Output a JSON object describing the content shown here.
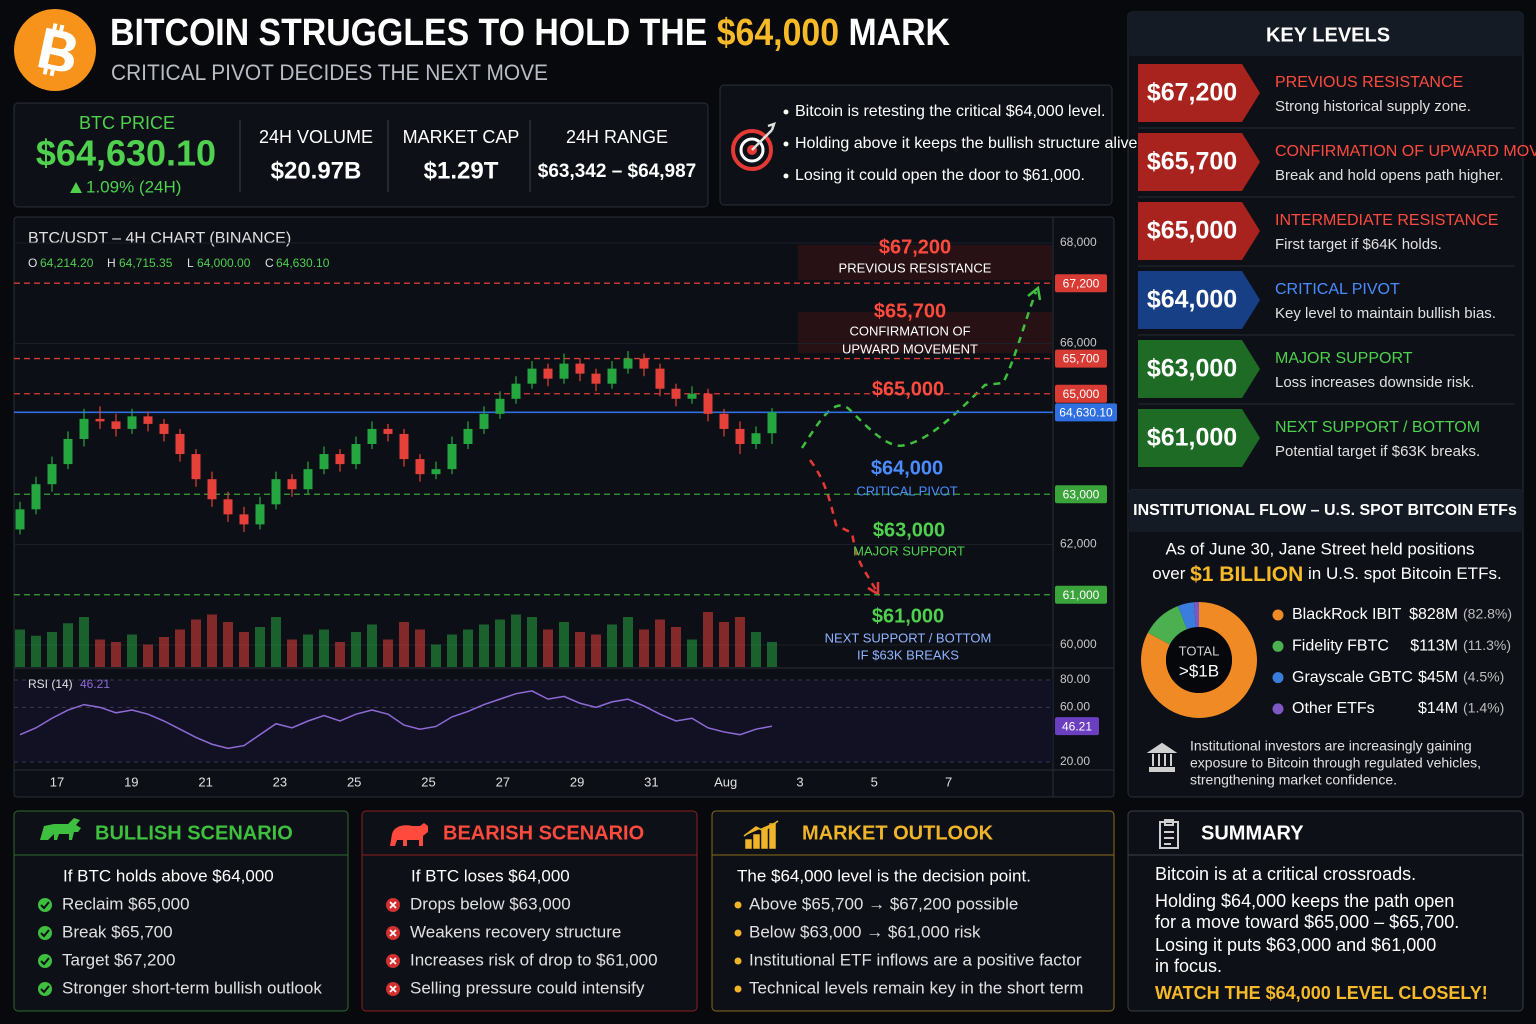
{
  "header": {
    "title_parts": [
      "BITCOIN STRUGGLES TO HOLD THE ",
      "$64,000",
      " MARK"
    ],
    "subtitle": "CRITICAL PIVOT DECIDES THE NEXT MOVE"
  },
  "price_box": {
    "label": "BTC PRICE",
    "price": "$64,630.10",
    "change": "1.09% (24H)"
  },
  "stats": [
    {
      "label": "24H VOLUME",
      "value": "$20.97B"
    },
    {
      "label": "MARKET CAP",
      "value": "$1.29T"
    },
    {
      "label": "24H RANGE",
      "value": "$63,342 – $64,987"
    }
  ],
  "notes": [
    "Bitcoin is retesting the critical $64,000 level.",
    "Holding above it keeps the bullish structure alive.",
    "Losing it could open the door to $61,000."
  ],
  "chart_data": {
    "type": "candlestick",
    "title": "BTC/USDT – 4H CHART (BINANCE)",
    "ohlc_labels": [
      {
        "key": "O",
        "value": "64,214.20"
      },
      {
        "key": "H",
        "value": "64,715.35"
      },
      {
        "key": "L",
        "value": "64,000.00"
      },
      {
        "key": "C",
        "value": "64,630.10"
      }
    ],
    "candles": [
      [
        62300,
        62850,
        62200,
        62700
      ],
      [
        62700,
        63350,
        62600,
        63200
      ],
      [
        63200,
        63750,
        63050,
        63600
      ],
      [
        63600,
        64250,
        63500,
        64100
      ],
      [
        64100,
        64700,
        63950,
        64500
      ],
      [
        64500,
        64750,
        64300,
        64450
      ],
      [
        64450,
        64600,
        64150,
        64300
      ],
      [
        64300,
        64700,
        64200,
        64550
      ],
      [
        64550,
        64650,
        64250,
        64400
      ],
      [
        64400,
        64500,
        64050,
        64200
      ],
      [
        64200,
        64300,
        63650,
        63800
      ],
      [
        63800,
        63900,
        63150,
        63300
      ],
      [
        63300,
        63450,
        62750,
        62900
      ],
      [
        62900,
        63050,
        62450,
        62600
      ],
      [
        62600,
        62750,
        62250,
        62400
      ],
      [
        62400,
        62950,
        62300,
        62800
      ],
      [
        62800,
        63450,
        62700,
        63300
      ],
      [
        63300,
        63400,
        62950,
        63100
      ],
      [
        63100,
        63650,
        63000,
        63500
      ],
      [
        63500,
        63950,
        63400,
        63800
      ],
      [
        63800,
        63900,
        63450,
        63600
      ],
      [
        63600,
        64150,
        63500,
        64000
      ],
      [
        64000,
        64450,
        63900,
        64300
      ],
      [
        64300,
        64400,
        64050,
        64200
      ],
      [
        64200,
        64300,
        63550,
        63700
      ],
      [
        63700,
        63800,
        63250,
        63400
      ],
      [
        63400,
        63650,
        63300,
        63500
      ],
      [
        63500,
        64150,
        63400,
        64000
      ],
      [
        64000,
        64450,
        63900,
        64300
      ],
      [
        64300,
        64750,
        64200,
        64600
      ],
      [
        64600,
        65050,
        64500,
        64900
      ],
      [
        64900,
        65350,
        64800,
        65200
      ],
      [
        65200,
        65650,
        65100,
        65500
      ],
      [
        65500,
        65600,
        65150,
        65300
      ],
      [
        65300,
        65800,
        65200,
        65600
      ],
      [
        65600,
        65700,
        65250,
        65400
      ],
      [
        65400,
        65500,
        65050,
        65200
      ],
      [
        65200,
        65650,
        65100,
        65500
      ],
      [
        65500,
        65850,
        65400,
        65700
      ],
      [
        65700,
        65800,
        65350,
        65500
      ],
      [
        65500,
        65600,
        64950,
        65100
      ],
      [
        65100,
        65200,
        64750,
        64900
      ],
      [
        64900,
        65150,
        64800,
        65000
      ],
      [
        65000,
        65100,
        64450,
        64600
      ],
      [
        64600,
        64700,
        64150,
        64300
      ],
      [
        64300,
        64450,
        63800,
        64000
      ],
      [
        64000,
        64350,
        63900,
        64214.2
      ],
      [
        64214.2,
        64715.35,
        64000,
        64630.1
      ]
    ],
    "volume": [
      30,
      25,
      28,
      35,
      40,
      22,
      20,
      26,
      18,
      24,
      30,
      38,
      42,
      36,
      28,
      32,
      40,
      22,
      26,
      30,
      20,
      28,
      34,
      22,
      36,
      30,
      18,
      26,
      30,
      34,
      38,
      42,
      40,
      30,
      36,
      28,
      26,
      34,
      40,
      30,
      38,
      32,
      22,
      44,
      36,
      40,
      28,
      20
    ],
    "up_color": "#26a641",
    "down_color": "#e5403a",
    "ylim": [
      60000,
      68000
    ],
    "yticks": [
      {
        "value": 68000,
        "label": "68,000"
      },
      {
        "value": 66000,
        "label": "66,000"
      },
      {
        "value": 62000,
        "label": "62,000"
      },
      {
        "value": 60000,
        "label": "60,000"
      }
    ],
    "grid": true,
    "x_tick_labels": [
      "17",
      "19",
      "21",
      "23",
      "25",
      "25",
      "27",
      "29",
      "31",
      "Aug",
      "3",
      "5",
      "7"
    ],
    "levels": [
      {
        "value": 67200,
        "label": "67,200",
        "color": "#d83a34",
        "style": "dashed"
      },
      {
        "value": 65700,
        "label": "65,700",
        "color": "#d83a34",
        "style": "dashed"
      },
      {
        "value": 65000,
        "label": "65,000",
        "color": "#d83a34",
        "style": "dashed"
      },
      {
        "value": 64630.1,
        "label": "64,630.10",
        "color": "#2f6fe0",
        "style": "solid"
      },
      {
        "value": 63000,
        "label": "63,000",
        "color": "#3aa33a",
        "style": "dashed"
      },
      {
        "value": 61000,
        "label": "61,000",
        "color": "#3aa33a",
        "style": "dashed"
      }
    ],
    "annotations": [
      {
        "title": "$67,200",
        "lines": [
          "PREVIOUS RESISTANCE"
        ],
        "color": "#ff4a3d",
        "sub_color": "#ffffff"
      },
      {
        "title": "$65,700",
        "lines": [
          "CONFIRMATION OF",
          "UPWARD MOVEMENT"
        ],
        "color": "#ff4a3d",
        "sub_color": "#ffffff"
      },
      {
        "title": "$65,000",
        "lines": [],
        "color": "#ff4a3d",
        "sub_color": "#ffffff"
      },
      {
        "title": "$64,000",
        "lines": [
          "CRITICAL PIVOT"
        ],
        "color": "#4a8cff",
        "sub_color": "#4a8cff"
      },
      {
        "title": "$63,000",
        "lines": [
          "MAJOR SUPPORT"
        ],
        "color": "#4fd04f",
        "sub_color": "#4fd04f"
      },
      {
        "title": "$61,000",
        "lines": [
          "NEXT SUPPORT / BOTTOM",
          "IF $63K BREAKS"
        ],
        "color": "#4fd04f",
        "sub_color": "#8fb4ff"
      }
    ],
    "rsi": {
      "label": "RSI (14)",
      "value_label": "46.21",
      "color": "#8e6bd6",
      "ylim": [
        20,
        80
      ],
      "yticks": [
        {
          "value": 80,
          "label": "80.00"
        },
        {
          "value": 60,
          "label": "60.00"
        },
        {
          "value": 20,
          "label": "20.00"
        }
      ],
      "values": [
        40,
        45,
        52,
        58,
        62,
        60,
        56,
        58,
        55,
        50,
        44,
        38,
        33,
        30,
        32,
        40,
        48,
        45,
        50,
        54,
        50,
        55,
        58,
        55,
        47,
        44,
        46,
        53,
        57,
        62,
        66,
        70,
        72,
        66,
        68,
        63,
        60,
        64,
        66,
        61,
        55,
        50,
        52,
        45,
        42,
        40,
        44,
        46.21
      ]
    }
  },
  "key_levels": {
    "title": "KEY LEVELS",
    "items": [
      {
        "price": "$67,200",
        "title": "PREVIOUS RESISTANCE",
        "desc": "Strong historical supply zone.",
        "color": "#a8231d",
        "accent": "#ff4a3d"
      },
      {
        "price": "$65,700",
        "title": "CONFIRMATION OF UPWARD MOVE",
        "desc": "Break and hold opens path higher.",
        "color": "#a8231d",
        "accent": "#ff4a3d"
      },
      {
        "price": "$65,000",
        "title": "INTERMEDIATE RESISTANCE",
        "desc": "First target if $64K holds.",
        "color": "#a8231d",
        "accent": "#ff4a3d"
      },
      {
        "price": "$64,000",
        "title": "CRITICAL PIVOT",
        "desc": "Key level to maintain bullish bias.",
        "color": "#173f85",
        "accent": "#4a8cff"
      },
      {
        "price": "$63,000",
        "title": "MAJOR SUPPORT",
        "desc": "Loss increases downside risk.",
        "color": "#1d6b25",
        "accent": "#4fd04f"
      },
      {
        "price": "$61,000",
        "title": "NEXT SUPPORT / BOTTOM",
        "desc": "Potential target if $63K breaks.",
        "color": "#1d6b25",
        "accent": "#4fd04f"
      }
    ]
  },
  "etf": {
    "title": "INSTITUTIONAL FLOW – U.S. SPOT BITCOIN ETFs",
    "line1": "As of June 30, Jane Street held positions",
    "line2_parts": [
      "over ",
      "$1 BILLION",
      " in U.S. spot Bitcoin ETFs."
    ],
    "chart": {
      "type": "pie",
      "center_labels": [
        "TOTAL",
        ">$1B"
      ],
      "categories": [
        "BlackRock IBIT",
        "Fidelity FBTC",
        "Grayscale GBTC",
        "Other ETFs"
      ],
      "amounts": [
        "$828M",
        "$113M",
        "$45M",
        "$14M"
      ],
      "values": [
        82.8,
        11.3,
        4.5,
        1.4
      ],
      "value_labels": [
        "(82.8%)",
        "(11.3%)",
        "(4.5%)",
        "(1.4%)"
      ],
      "colors": [
        "#f08a24",
        "#4caf50",
        "#3b7ddd",
        "#7e57c2"
      ]
    },
    "note": [
      "Institutional investors are increasingly gaining",
      "exposure to Bitcoin through regulated vehicles,",
      "strengthening market confidence."
    ]
  },
  "scenarios": [
    {
      "title": "BULLISH SCENARIO",
      "intro": "If BTC holds above $64,000",
      "items": [
        "Reclaim $65,000",
        "Break $65,700",
        "Target $67,200",
        "Stronger short-term bullish outlook"
      ],
      "color": "#3fbf3f",
      "border": "#2d6b2d"
    },
    {
      "title": "BEARISH SCENARIO",
      "intro": "If BTC loses $64,000",
      "items": [
        "Drops below $63,000",
        "Weakens recovery structure",
        "Increases risk of drop to $61,000",
        "Selling pressure could intensify"
      ],
      "color": "#ff4a3d",
      "border": "#8a2020"
    },
    {
      "title": "MARKET OUTLOOK",
      "intro": "The $64,000 level is the decision point.",
      "items": [
        "Above $65,700 → $67,200 possible",
        "Below $63,000 → $61,000 risk",
        "Institutional ETF inflows are a positive factor",
        "Technical levels remain key in the short term"
      ],
      "color": "#f0b429",
      "border": "#8a6a1a"
    }
  ],
  "summary": {
    "title": "SUMMARY",
    "lines": [
      "Bitcoin is at a critical crossroads.",
      "Holding $64,000 keeps the path open",
      "for a move toward $65,000 – $65,700.",
      "Losing it puts $63,000 and $61,000",
      "in focus."
    ],
    "callout": "WATCH THE $64,000 LEVEL CLOSELY!"
  }
}
